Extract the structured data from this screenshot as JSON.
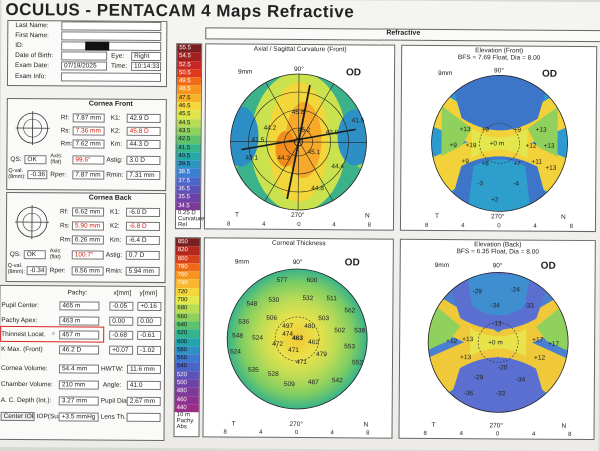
{
  "header": {
    "title": "OCULUS - PENTACAM  4 Maps Refractive",
    "refractive_label": "Refractive"
  },
  "patient": {
    "last_name_label": "Last Name:",
    "first_name_label": "First Name:",
    "id_label": "ID:",
    "dob_label": "Date of Birth:",
    "eye_label": "Eye:",
    "eye_value": "Right",
    "exam_date_label": "Exam Date:",
    "exam_date_value": "07/19/2025",
    "time_label": "Time:",
    "time_value": "10:14:33",
    "exam_info_label": "Exam Info:"
  },
  "cornea_front": {
    "title": "Cornea Front",
    "rf_label": "Rf:",
    "rf_value": "7.87 mm",
    "rs_label": "Rs:",
    "rs_value": "7.36 mm",
    "rm_label": "Rm:",
    "rm_value": "7.62 mm",
    "k1_label": "K1:",
    "k1_value": "42.9 D",
    "k2_label": "K2:",
    "k2_value": "45.8 D",
    "km_label": "Km:",
    "km_value": "44.3 D",
    "qs_label": "QS:",
    "qs_value": "OK",
    "axis_label": "Axis:\n(flat)",
    "axis_value": "99.6°",
    "astig_label": "Astig:",
    "astig_value": "3.0 D",
    "qval_label": "Q-val.\n(8mm):",
    "qval_value": "-0.36",
    "rper_label": "Rper:",
    "rper_value": "7.87 mm",
    "rmin_label": "Rmin:",
    "rmin_value": "7.31 mm"
  },
  "cornea_back": {
    "title": "Cornea Back",
    "rf_label": "Rf:",
    "rf_value": "6.62 mm",
    "rs_label": "Rs:",
    "rs_value": "5.90 mm",
    "rm_label": "Rm:",
    "rm_value": "6.26 mm",
    "k1_label": "K1:",
    "k1_value": "-6.0 D",
    "k2_label": "K2:",
    "k2_value": "-6.8 D",
    "km_label": "Km:",
    "km_value": "-6.4 D",
    "qs_label": "QS:",
    "qs_value": "OK",
    "axis_label": "Axis:\n(flat)",
    "axis_value": "100.7°",
    "astig_label": "Astig:",
    "astig_value": "0.7 D",
    "qval_label": "Q-val.\n(8mm):",
    "qval_value": "-0.34",
    "rper_label": "Rper:",
    "rper_value": "6.56 mm",
    "rmin_label": "Rmin:",
    "rmin_value": "5.94 mm"
  },
  "pachy": {
    "col_pachy": "Pachy:",
    "col_x": "x[mm]",
    "col_y": "y[mm]",
    "rows": [
      {
        "label": "Pupil Center:",
        "pachy": "465 m",
        "x": "-0.05",
        "y": "+0.16"
      },
      {
        "label": "Pachy Apex:",
        "pachy": "463 m",
        "x": "0.00",
        "y": "0.00"
      },
      {
        "label": "Thinnest Locat.",
        "pachy": "457 m",
        "x": "-0.68",
        "y": "-0.61"
      },
      {
        "label": "K Max. (Front)",
        "pachy": "46.2 D",
        "x": "+0.07",
        "y": "-1.02"
      }
    ],
    "cornea_volume_label": "Cornea Volume:",
    "cornea_volume_value": "54.4 mm",
    "hwtw_label": "HWTW:",
    "hwtw_value": "11.6 mm",
    "chamber_volume_label": "Chamber Volume:",
    "chamber_volume_value": "210 mm",
    "angle_label": "Angle:",
    "angle_value": "41.0",
    "acd_label": "A. C. Depth (Int.):",
    "acd_value": "3.27 mm",
    "pupil_dia_label": "Pupil Dia:",
    "pupil_dia_value": "2.67 mm",
    "iop_label": "Center IOP",
    "iop_sum_label": "IOP(Sum):",
    "iop_sum_value": "+3.5 mmHg",
    "lens_label": "Lens Th.:"
  },
  "scale_top": {
    "values": [
      "55.5",
      "54.5",
      "52.5",
      "50.5",
      "49.5",
      "48.5",
      "47.5",
      "46.5",
      "45.5",
      "44.5",
      "43.5",
      "42.5",
      "41.5",
      "40.5",
      "39.5",
      "38.5",
      "37.5",
      "36.5",
      "35.5",
      "34.5"
    ],
    "step": "0.25 D",
    "label1": "Curvature",
    "label2": "Rel"
  },
  "scale_bottom": {
    "values": [
      "850",
      "820",
      "800",
      "780",
      "760",
      "740",
      "720",
      "700",
      "680",
      "660",
      "640",
      "620",
      "600",
      "580",
      "560",
      "540",
      "520",
      "500",
      "480",
      "460",
      "440"
    ],
    "step": "10 m",
    "label1": "Pachy.",
    "label2": "Abs"
  },
  "maps": {
    "axial": {
      "title": "Axial / Sagittal Curvature (Front)",
      "od": "OD",
      "zoom": "9mm",
      "values": [
        "41.5",
        "45.8",
        "44.2",
        "42.9",
        "45.2",
        "45.1",
        "41.5",
        "43.1",
        "44.3",
        "44.4",
        "44.8"
      ],
      "axis_top": "90°",
      "axis_bottom": "270°",
      "t": "T",
      "n": "N",
      "ticks": [
        "8",
        "4",
        "0",
        "4",
        "8"
      ]
    },
    "elev_front": {
      "title": "Elevation (Front)",
      "subtitle": "BFS = 7.69 Float, Dia = 8.00",
      "od": "OD",
      "zoom": "9mm",
      "values": [
        "+13",
        "+9",
        "+13",
        "+9",
        "+9",
        "+19",
        "+12",
        "+13",
        "+9",
        "+8",
        "+7",
        "-3",
        "-4",
        "+2",
        "+11",
        "+13"
      ],
      "center": "+0 m",
      "axis_top": "90°",
      "axis_bottom": "270°",
      "t": "T",
      "n": "N",
      "ticks": [
        "8",
        "4",
        "0",
        "4",
        "8"
      ]
    },
    "thickness": {
      "title": "Corneal Thickness",
      "od": "OD",
      "zoom": "9mm",
      "values": [
        "577",
        "600",
        "530",
        "532",
        "511",
        "548",
        "562",
        "536",
        "506",
        "524",
        "503",
        "497",
        "502",
        "538",
        "474",
        "480",
        "553",
        "524",
        "462",
        "472",
        "548",
        "471",
        "479",
        "552",
        "471",
        "535",
        "528",
        "509",
        "487",
        "542"
      ],
      "center": "463",
      "axis_top": "90°",
      "axis_bottom": "270°",
      "t": "T",
      "n": "N",
      "ticks": [
        "8",
        "4",
        "0",
        "4",
        "8"
      ]
    },
    "elev_back": {
      "title": "Elevation (Back)",
      "subtitle": "BFS = 6.35 Float, Dia = 8.00",
      "od": "OD",
      "zoom": "9mm",
      "values": [
        "-29",
        "-24",
        "-34",
        "-33",
        "-13",
        "+12",
        "+13",
        "+17",
        "+17",
        "+13",
        "+12",
        "-20",
        "-29",
        "-34",
        "-36",
        "-33"
      ],
      "center": "+0 m",
      "axis_top": "90°",
      "axis_bottom": "270°",
      "t": "T",
      "n": "N",
      "ticks": [
        "8",
        "4",
        "0",
        "4",
        "8"
      ]
    }
  },
  "colors": {
    "scale_top": [
      "#7a1f1f",
      "#a02020",
      "#c62828",
      "#e03a1e",
      "#f06a1a",
      "#f7941d",
      "#f7b32b",
      "#f5d73a",
      "#dfe54a",
      "#b7dc55",
      "#8fd15c",
      "#5ec46c",
      "#34b58b",
      "#25a8a8",
      "#2d95c2",
      "#3a7fd0",
      "#4a66c9",
      "#5b52b8",
      "#6b43a8",
      "#7b3a98"
    ],
    "scale_bottom": [
      "#7a1f1f",
      "#b3281e",
      "#d7401c",
      "#ee6a1a",
      "#f7941d",
      "#f8b72e",
      "#f4d63a",
      "#e2e84a",
      "#b9dd55",
      "#8fd15c",
      "#5bc36c",
      "#33b48c",
      "#24a5ab",
      "#2d92c3",
      "#3a7bd1",
      "#4a65ca",
      "#5c52b9",
      "#6c44a8",
      "#7d3a99",
      "#8d3190",
      "#9a2b87"
    ]
  }
}
